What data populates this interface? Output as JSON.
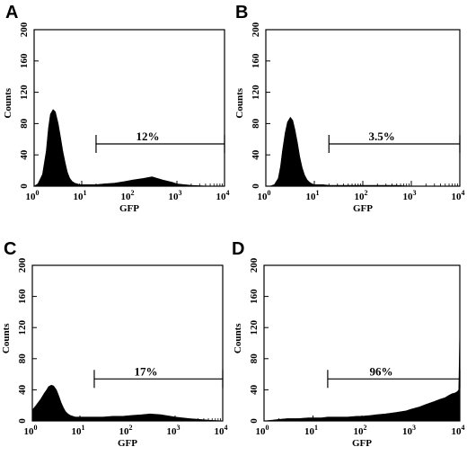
{
  "chart_data": [
    {
      "type": "area",
      "panel": "A",
      "xlabel": "GFP",
      "ylabel": "Counts",
      "x_scale": "log",
      "xlim": [
        1,
        10000
      ],
      "ylim": [
        0,
        200
      ],
      "x_ticks": [
        "10",
        "10",
        "10",
        "10",
        "10"
      ],
      "x_tick_exponents": [
        "0",
        "1",
        "2",
        "3",
        "4"
      ],
      "y_ticks": [
        "0",
        "40",
        "80",
        "120",
        "160",
        "200"
      ],
      "gate": {
        "label": "12%",
        "x_start": 20,
        "x_end": 10000
      },
      "series": [
        {
          "x": [
            1,
            1.2,
            1.5,
            1.8,
            2.0,
            2.2,
            2.5,
            2.8,
            3.2,
            3.6,
            4.0,
            4.5,
            5.0,
            5.6,
            6.3,
            7.1,
            8.0,
            9.0,
            10,
            12,
            15,
            20,
            30,
            50,
            80,
            120,
            200,
            300,
            500,
            800,
            1000,
            2000,
            5000,
            10000
          ],
          "y": [
            0,
            3,
            15,
            45,
            75,
            92,
            98,
            95,
            80,
            62,
            45,
            30,
            18,
            10,
            6,
            4,
            3,
            2,
            2,
            2,
            2,
            2,
            3,
            4,
            6,
            8,
            10,
            12,
            8,
            5,
            3,
            1,
            0,
            0
          ]
        }
      ]
    },
    {
      "type": "area",
      "panel": "B",
      "xlabel": "GFP",
      "ylabel": "Counts",
      "x_scale": "log",
      "xlim": [
        1,
        10000
      ],
      "ylim": [
        0,
        200
      ],
      "x_ticks": [
        "10",
        "10",
        "10",
        "10",
        "10"
      ],
      "x_tick_exponents": [
        "0",
        "1",
        "2",
        "3",
        "4"
      ],
      "y_ticks": [
        "0",
        "40",
        "80",
        "120",
        "160",
        "200"
      ],
      "gate": {
        "label": "3.5%",
        "x_start": 20,
        "x_end": 10000
      },
      "series": [
        {
          "x": [
            1,
            1.2,
            1.5,
            1.8,
            2.0,
            2.2,
            2.5,
            2.8,
            3.2,
            3.6,
            4.0,
            4.5,
            5.0,
            5.6,
            6.3,
            7.1,
            8.0,
            9.0,
            10,
            12,
            15,
            20,
            30,
            50,
            80,
            120,
            200,
            500,
            1000,
            2000,
            5000,
            10000
          ],
          "y": [
            0,
            0,
            2,
            10,
            25,
            45,
            68,
            82,
            88,
            84,
            72,
            55,
            38,
            24,
            14,
            8,
            5,
            3,
            2,
            2,
            2,
            1,
            1,
            1,
            1,
            1,
            1,
            1,
            0,
            0,
            0,
            0
          ]
        }
      ]
    },
    {
      "type": "area",
      "panel": "C",
      "xlabel": "GFP",
      "ylabel": "Counts",
      "x_scale": "log",
      "xlim": [
        1,
        10000
      ],
      "ylim": [
        0,
        200
      ],
      "x_ticks": [
        "10",
        "10",
        "10",
        "10",
        "10"
      ],
      "x_tick_exponents": [
        "0",
        "1",
        "2",
        "3",
        "4"
      ],
      "y_ticks": [
        "0",
        "40",
        "80",
        "120",
        "160",
        "200"
      ],
      "gate": {
        "label": "17%",
        "x_start": 20,
        "x_end": 10000
      },
      "series": [
        {
          "x": [
            1,
            1.2,
            1.5,
            1.8,
            2.0,
            2.2,
            2.5,
            2.8,
            3.2,
            3.6,
            4.0,
            4.5,
            5.0,
            5.6,
            6.3,
            7.1,
            8.0,
            9.0,
            10,
            12,
            15,
            20,
            30,
            50,
            80,
            120,
            200,
            300,
            500,
            800,
            1000,
            2000,
            5000,
            10000
          ],
          "y": [
            14,
            20,
            28,
            36,
            40,
            44,
            46,
            45,
            40,
            32,
            24,
            17,
            12,
            9,
            7,
            6,
            5,
            5,
            5,
            5,
            5,
            5,
            5,
            6,
            6,
            7,
            8,
            9,
            8,
            6,
            5,
            3,
            1,
            0
          ]
        }
      ]
    },
    {
      "type": "area",
      "panel": "D",
      "xlabel": "GFP",
      "ylabel": "Counts",
      "x_scale": "log",
      "xlim": [
        1,
        10000
      ],
      "ylim": [
        0,
        200
      ],
      "x_ticks": [
        "10",
        "10",
        "10",
        "10",
        "10"
      ],
      "x_tick_exponents": [
        "0",
        "1",
        "2",
        "3",
        "4"
      ],
      "y_ticks": [
        "0",
        "40",
        "80",
        "120",
        "160",
        "200"
      ],
      "gate": {
        "label": "96%",
        "x_start": 20,
        "x_end": 10000
      },
      "series": [
        {
          "x": [
            1,
            1.5,
            2,
            3,
            5,
            8,
            10,
            15,
            20,
            30,
            50,
            80,
            100,
            150,
            200,
            300,
            500,
            800,
            1000,
            1500,
            2000,
            3000,
            4000,
            5000,
            6000,
            7000,
            8000,
            9000,
            9500,
            10000
          ],
          "y": [
            0,
            1,
            2,
            3,
            3,
            4,
            4,
            4,
            5,
            5,
            5,
            6,
            6,
            7,
            8,
            9,
            11,
            13,
            15,
            18,
            21,
            25,
            28,
            30,
            33,
            35,
            36,
            38,
            40,
            120
          ]
        }
      ]
    }
  ]
}
